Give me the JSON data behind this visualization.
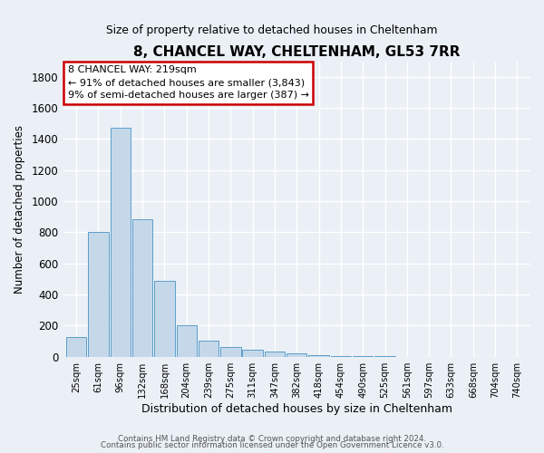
{
  "title": "8, CHANCEL WAY, CHELTENHAM, GL53 7RR",
  "subtitle": "Size of property relative to detached houses in Cheltenham",
  "xlabel": "Distribution of detached houses by size in Cheltenham",
  "ylabel": "Number of detached properties",
  "bar_color": "#c5d8ea",
  "bar_edge_color": "#5b9ec9",
  "categories": [
    "25sqm",
    "61sqm",
    "96sqm",
    "132sqm",
    "168sqm",
    "204sqm",
    "239sqm",
    "275sqm",
    "311sqm",
    "347sqm",
    "382sqm",
    "418sqm",
    "454sqm",
    "490sqm",
    "525sqm",
    "561sqm",
    "597sqm",
    "633sqm",
    "668sqm",
    "704sqm",
    "740sqm"
  ],
  "values": [
    125,
    800,
    1475,
    885,
    490,
    205,
    105,
    65,
    45,
    33,
    22,
    10,
    5,
    3,
    2,
    1,
    1,
    1,
    1,
    1,
    1
  ],
  "ylim": [
    0,
    1900
  ],
  "yticks": [
    0,
    200,
    400,
    600,
    800,
    1000,
    1200,
    1400,
    1600,
    1800
  ],
  "annotation_text": "8 CHANCEL WAY: 219sqm\n← 91% of detached houses are smaller (3,843)\n9% of semi-detached houses are larger (387) →",
  "annotation_box_color": "#ffffff",
  "annotation_box_edge_color": "#cc0000",
  "footer_line1": "Contains HM Land Registry data © Crown copyright and database right 2024.",
  "footer_line2": "Contains public sector information licensed under the Open Government Licence v3.0.",
  "background_color": "#eaf0f6",
  "grid_color": "#ffffff"
}
